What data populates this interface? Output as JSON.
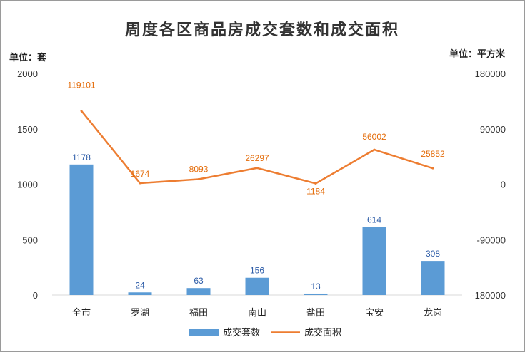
{
  "chart_data": {
    "type": "bar+line",
    "title": "周度各区商品房成交套数和成交面积",
    "left_unit": "单位：套",
    "right_unit": "单位：平方米",
    "categories": [
      "全市",
      "罗湖",
      "福田",
      "南山",
      "盐田",
      "宝安",
      "龙岗"
    ],
    "series": [
      {
        "name": "成交套数",
        "type": "bar",
        "axis": "left",
        "color": "#5b9bd5",
        "values": [
          1178,
          24,
          63,
          156,
          13,
          614,
          308
        ]
      },
      {
        "name": "成交面积",
        "type": "line",
        "axis": "right",
        "color": "#ed7d31",
        "values": [
          119101,
          1674,
          8093,
          26297,
          1184,
          56002,
          25852
        ]
      }
    ],
    "left_axis": {
      "min": 0,
      "max": 2000,
      "ticks": [
        "2000",
        "1500",
        "1000",
        "500",
        "0"
      ],
      "tick_values": [
        2000,
        1500,
        1000,
        500,
        0
      ]
    },
    "right_axis": {
      "min": -180000,
      "max": 180000,
      "ticks": [
        "180000",
        "90000",
        "0",
        "-90000",
        "-180000"
      ],
      "tick_values": [
        180000,
        90000,
        0,
        -90000,
        -180000
      ]
    },
    "grid": false,
    "legend_position": "bottom"
  }
}
